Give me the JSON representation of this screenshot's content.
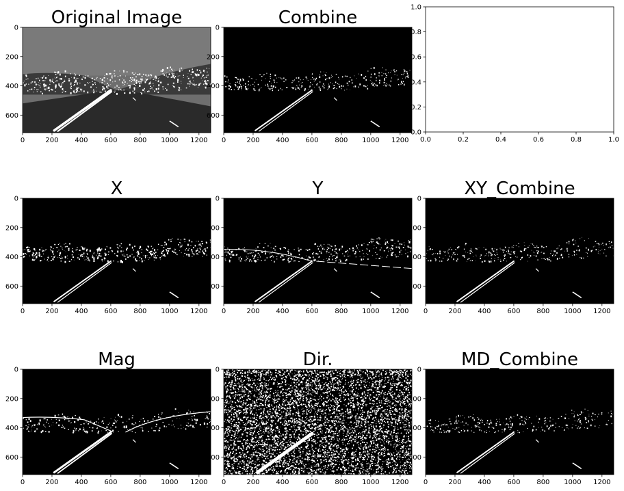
{
  "figure": {
    "background": "#ffffff",
    "image_foreground": "#ffffff",
    "image_background": "#000000"
  },
  "chart_data": [
    {
      "type": "heatmap",
      "id": "original",
      "title": "Original Image",
      "colormap": "gray",
      "content": "grayscale road image",
      "xlim": [
        0,
        1280
      ],
      "ylim": [
        720,
        0
      ],
      "xticks": [
        0,
        200,
        400,
        600,
        800,
        1000,
        1200
      ],
      "yticks": [
        0,
        200,
        400,
        600
      ]
    },
    {
      "type": "heatmap",
      "id": "combine",
      "title": "Combine",
      "colormap": "binary",
      "content": "combined threshold",
      "xlim": [
        0,
        1280
      ],
      "ylim": [
        720,
        0
      ],
      "xticks": [
        0,
        200,
        400,
        600,
        800,
        1000,
        1200
      ],
      "yticks": [
        0,
        200,
        400,
        600
      ]
    },
    {
      "type": "empty",
      "id": "empty",
      "title": "",
      "xlim": [
        0,
        1
      ],
      "ylim": [
        0,
        1
      ],
      "xticks": [
        0.0,
        0.2,
        0.4,
        0.6,
        0.8,
        1.0
      ],
      "yticks": [
        0.0,
        0.2,
        0.4,
        0.6,
        0.8,
        1.0
      ]
    },
    {
      "type": "heatmap",
      "id": "x",
      "title": "X",
      "colormap": "binary",
      "content": "x sobel threshold",
      "xlim": [
        0,
        1280
      ],
      "ylim": [
        720,
        0
      ],
      "xticks": [
        0,
        200,
        400,
        600,
        800,
        1000,
        1200
      ],
      "yticks": [
        0,
        200,
        400,
        600
      ]
    },
    {
      "type": "heatmap",
      "id": "y",
      "title": "Y",
      "colormap": "binary",
      "content": "y sobel threshold",
      "xlim": [
        0,
        1280
      ],
      "ylim": [
        720,
        0
      ],
      "xticks": [
        0,
        200,
        400,
        600,
        800,
        1000,
        1200
      ],
      "yticks": [
        0,
        200,
        400,
        600
      ]
    },
    {
      "type": "heatmap",
      "id": "xy",
      "title": "XY_Combine",
      "colormap": "binary",
      "content": "xy combined threshold",
      "xlim": [
        0,
        1280
      ],
      "ylim": [
        720,
        0
      ],
      "xticks": [
        0,
        200,
        400,
        600,
        800,
        1000,
        1200
      ],
      "yticks": [
        0,
        200,
        400,
        600
      ]
    },
    {
      "type": "heatmap",
      "id": "mag",
      "title": "Mag",
      "colormap": "binary",
      "content": "gradient magnitude threshold",
      "xlim": [
        0,
        1280
      ],
      "ylim": [
        720,
        0
      ],
      "xticks": [
        0,
        200,
        400,
        600,
        800,
        1000,
        1200
      ],
      "yticks": [
        0,
        200,
        400,
        600
      ]
    },
    {
      "type": "heatmap",
      "id": "dir",
      "title": "Dir.",
      "colormap": "binary",
      "content": "gradient direction threshold",
      "xlim": [
        0,
        1280
      ],
      "ylim": [
        720,
        0
      ],
      "xticks": [
        0,
        200,
        400,
        600,
        800,
        1000,
        1200
      ],
      "yticks": [
        0,
        200,
        400,
        600
      ]
    },
    {
      "type": "heatmap",
      "id": "md",
      "title": "MD_Combine",
      "colormap": "binary",
      "content": "magnitude-direction combined threshold",
      "xlim": [
        0,
        1280
      ],
      "ylim": [
        720,
        0
      ],
      "xticks": [
        0,
        200,
        400,
        600,
        800,
        1000,
        1200
      ],
      "yticks": [
        0,
        200,
        400,
        600
      ]
    }
  ]
}
